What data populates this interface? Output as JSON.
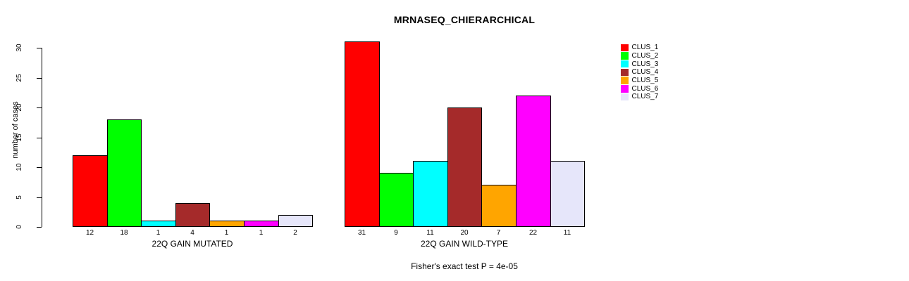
{
  "title": "MRNASEQ_CHIERARCHICAL",
  "chart_data": {
    "type": "bar",
    "title": "MRNASEQ_CHIERARCHICAL",
    "xlabel": "",
    "ylabel": "number of cases",
    "ylim": [
      0,
      31
    ],
    "yticks": [
      0,
      5,
      10,
      15,
      20,
      25,
      30
    ],
    "grid": false,
    "legend_position": "right",
    "categories": [
      "22Q GAIN MUTATED",
      "22Q GAIN WILD-TYPE"
    ],
    "series": [
      {
        "name": "CLUS_1",
        "color": "#FF0000",
        "values": [
          12,
          31
        ]
      },
      {
        "name": "CLUS_2",
        "color": "#00FF00",
        "values": [
          18,
          9
        ]
      },
      {
        "name": "CLUS_3",
        "color": "#00FFFF",
        "values": [
          1,
          11
        ]
      },
      {
        "name": "CLUS_4",
        "color": "#A52A2A",
        "values": [
          4,
          20
        ]
      },
      {
        "name": "CLUS_5",
        "color": "#FFA500",
        "values": [
          1,
          7
        ]
      },
      {
        "name": "CLUS_6",
        "color": "#FF00FF",
        "values": [
          1,
          22
        ]
      },
      {
        "name": "CLUS_7",
        "color": "#E6E6FA",
        "values": [
          2,
          11
        ]
      }
    ],
    "bar_count_labels": {
      "22Q GAIN MUTATED": [
        12,
        18,
        1,
        4,
        1,
        1,
        2
      ],
      "22Q GAIN WILD-TYPE": [
        31,
        9,
        11,
        20,
        7,
        22,
        11
      ]
    },
    "annotation": "Fisher's exact test P = 4e-05",
    "bar_outline_color": "#000000",
    "background_color": "#FFFFFF"
  }
}
